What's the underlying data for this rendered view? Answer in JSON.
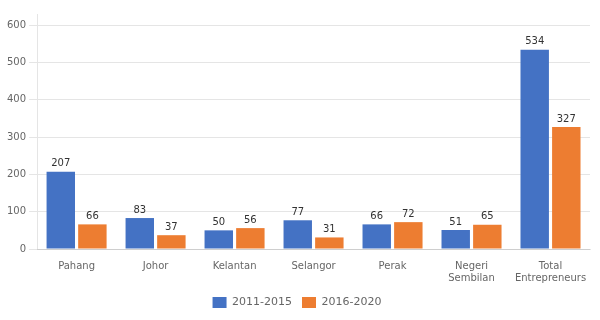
{
  "chart_data": {
    "type": "bar",
    "categories": [
      "Pahang",
      "Johor",
      "Kelantan",
      "Selangor",
      "Perak",
      "Negeri\nSembilan",
      "Total\nEntrepreneurs"
    ],
    "series": [
      {
        "name": "2011-2015",
        "color": "#4472C4",
        "values": [
          207,
          83,
          50,
          77,
          66,
          51,
          534
        ]
      },
      {
        "name": "2016-2020",
        "color": "#ED7D31",
        "values": [
          66,
          37,
          56,
          31,
          72,
          65,
          327
        ]
      }
    ],
    "ylim": [
      0,
      630
    ],
    "yticks": [
      0,
      100,
      200,
      300,
      400,
      500,
      600
    ],
    "grid": true,
    "legend": "bottom",
    "data_labels": true
  }
}
